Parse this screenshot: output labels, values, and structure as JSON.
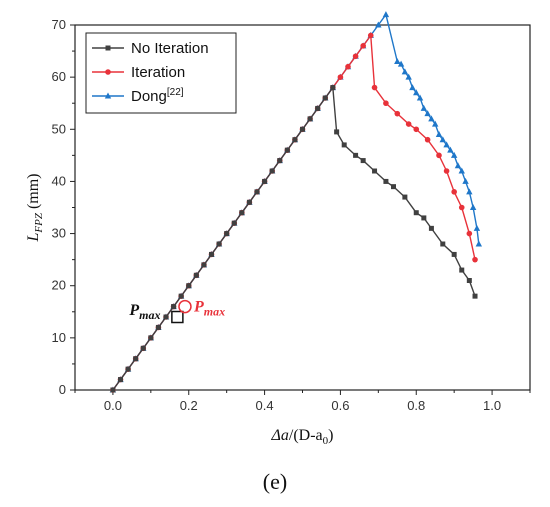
{
  "chart_data": {
    "type": "line",
    "xlabel": "Δa/(D-a₀)",
    "ylabel": "L_FPZ (mm)",
    "xlim": [
      -0.1,
      1.1
    ],
    "ylim": [
      0,
      70
    ],
    "x_ticks": [
      "0.0",
      "0.2",
      "0.4",
      "0.6",
      "0.8",
      "1.0"
    ],
    "y_ticks": [
      "0",
      "10",
      "20",
      "30",
      "40",
      "50",
      "60",
      "70"
    ],
    "grid": false,
    "legend_position": "top-left",
    "series": [
      {
        "name": "No Iteration",
        "color": "#404040",
        "marker": "square",
        "points": [
          [
            0.0,
            0
          ],
          [
            0.02,
            2
          ],
          [
            0.04,
            4
          ],
          [
            0.06,
            6
          ],
          [
            0.08,
            8
          ],
          [
            0.1,
            10
          ],
          [
            0.12,
            12
          ],
          [
            0.14,
            14
          ],
          [
            0.16,
            16
          ],
          [
            0.18,
            18
          ],
          [
            0.2,
            20
          ],
          [
            0.22,
            22
          ],
          [
            0.24,
            24
          ],
          [
            0.26,
            26
          ],
          [
            0.28,
            28
          ],
          [
            0.3,
            30
          ],
          [
            0.32,
            32
          ],
          [
            0.34,
            34
          ],
          [
            0.36,
            36
          ],
          [
            0.38,
            38
          ],
          [
            0.4,
            40
          ],
          [
            0.42,
            42
          ],
          [
            0.44,
            44
          ],
          [
            0.46,
            46
          ],
          [
            0.48,
            48
          ],
          [
            0.5,
            50
          ],
          [
            0.52,
            52
          ],
          [
            0.54,
            54
          ],
          [
            0.56,
            56
          ],
          [
            0.58,
            58
          ],
          [
            0.59,
            49.5
          ],
          [
            0.61,
            47
          ],
          [
            0.64,
            45
          ],
          [
            0.66,
            44
          ],
          [
            0.69,
            42
          ],
          [
            0.72,
            40
          ],
          [
            0.74,
            39
          ],
          [
            0.77,
            37
          ],
          [
            0.8,
            34
          ],
          [
            0.82,
            33
          ],
          [
            0.84,
            31
          ],
          [
            0.87,
            28
          ],
          [
            0.9,
            26
          ],
          [
            0.92,
            23
          ],
          [
            0.94,
            21
          ],
          [
            0.955,
            18
          ]
        ]
      },
      {
        "name": "Iteration",
        "color": "#e8323a",
        "marker": "circle",
        "points": [
          [
            0.0,
            0
          ],
          [
            0.02,
            2
          ],
          [
            0.04,
            4
          ],
          [
            0.06,
            6
          ],
          [
            0.08,
            8
          ],
          [
            0.1,
            10
          ],
          [
            0.12,
            12
          ],
          [
            0.14,
            14
          ],
          [
            0.16,
            16
          ],
          [
            0.18,
            18
          ],
          [
            0.2,
            20
          ],
          [
            0.22,
            22
          ],
          [
            0.24,
            24
          ],
          [
            0.26,
            26
          ],
          [
            0.28,
            28
          ],
          [
            0.3,
            30
          ],
          [
            0.32,
            32
          ],
          [
            0.34,
            34
          ],
          [
            0.36,
            36
          ],
          [
            0.38,
            38
          ],
          [
            0.4,
            40
          ],
          [
            0.42,
            42
          ],
          [
            0.44,
            44
          ],
          [
            0.46,
            46
          ],
          [
            0.48,
            48
          ],
          [
            0.5,
            50
          ],
          [
            0.52,
            52
          ],
          [
            0.54,
            54
          ],
          [
            0.56,
            56
          ],
          [
            0.58,
            58
          ],
          [
            0.6,
            60
          ],
          [
            0.62,
            62
          ],
          [
            0.64,
            64
          ],
          [
            0.66,
            66
          ],
          [
            0.68,
            68
          ],
          [
            0.69,
            58
          ],
          [
            0.72,
            55
          ],
          [
            0.75,
            53
          ],
          [
            0.78,
            51
          ],
          [
            0.8,
            50
          ],
          [
            0.83,
            48
          ],
          [
            0.86,
            45
          ],
          [
            0.88,
            42
          ],
          [
            0.9,
            38
          ],
          [
            0.92,
            35
          ],
          [
            0.94,
            30
          ],
          [
            0.955,
            25
          ]
        ]
      },
      {
        "name": "Dong[22]",
        "color": "#1f77c9",
        "marker": "triangle",
        "points": [
          [
            0.0,
            0
          ],
          [
            0.02,
            2
          ],
          [
            0.04,
            4
          ],
          [
            0.06,
            6
          ],
          [
            0.08,
            8
          ],
          [
            0.1,
            10
          ],
          [
            0.12,
            12
          ],
          [
            0.14,
            14
          ],
          [
            0.16,
            16
          ],
          [
            0.18,
            18
          ],
          [
            0.2,
            20
          ],
          [
            0.22,
            22
          ],
          [
            0.24,
            24
          ],
          [
            0.26,
            26
          ],
          [
            0.28,
            28
          ],
          [
            0.3,
            30
          ],
          [
            0.32,
            32
          ],
          [
            0.34,
            34
          ],
          [
            0.36,
            36
          ],
          [
            0.38,
            38
          ],
          [
            0.4,
            40
          ],
          [
            0.42,
            42
          ],
          [
            0.44,
            44
          ],
          [
            0.46,
            46
          ],
          [
            0.48,
            48
          ],
          [
            0.5,
            50
          ],
          [
            0.52,
            52
          ],
          [
            0.54,
            54
          ],
          [
            0.56,
            56
          ],
          [
            0.58,
            58
          ],
          [
            0.6,
            60
          ],
          [
            0.62,
            62
          ],
          [
            0.64,
            64
          ],
          [
            0.66,
            66
          ],
          [
            0.68,
            68
          ],
          [
            0.7,
            70
          ],
          [
            0.72,
            72
          ],
          [
            0.75,
            63
          ],
          [
            0.76,
            62.5
          ],
          [
            0.77,
            61
          ],
          [
            0.78,
            60
          ],
          [
            0.79,
            58
          ],
          [
            0.8,
            57
          ],
          [
            0.81,
            56
          ],
          [
            0.82,
            54
          ],
          [
            0.83,
            53
          ],
          [
            0.84,
            52
          ],
          [
            0.85,
            51
          ],
          [
            0.86,
            49
          ],
          [
            0.87,
            48
          ],
          [
            0.88,
            47
          ],
          [
            0.89,
            46
          ],
          [
            0.9,
            45
          ],
          [
            0.91,
            43
          ],
          [
            0.92,
            42
          ],
          [
            0.93,
            40
          ],
          [
            0.94,
            38
          ],
          [
            0.95,
            35
          ],
          [
            0.96,
            31
          ],
          [
            0.965,
            28
          ]
        ]
      }
    ],
    "annotations": [
      {
        "text": "Pmax",
        "color": "#111111",
        "marker": "square-open",
        "at": [
          0.17,
          14
        ]
      },
      {
        "text": "Pmax",
        "color": "#e8323a",
        "marker": "circle-open",
        "at": [
          0.19,
          16
        ]
      }
    ]
  },
  "panel_label": "(e)"
}
